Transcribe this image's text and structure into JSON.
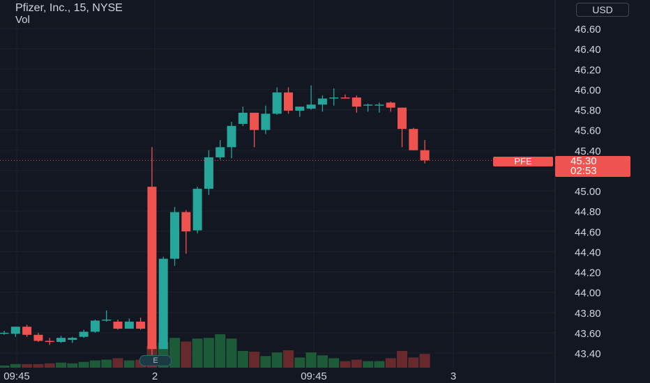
{
  "legend": {
    "title": "Pfizer, Inc., 15, NYSE",
    "vol_label": "Vol"
  },
  "currency": "USD",
  "symbol_label": "PFE",
  "last_price": "45.30",
  "countdown": "02:53",
  "earnings_marker": "E",
  "colors": {
    "up": "#26a69a",
    "down": "#ef5350",
    "bg": "#131722",
    "grid": "#1e222d",
    "text": "#d1d4dc"
  },
  "chart_data": {
    "type": "candlestick",
    "title": "Pfizer, Inc., 15, NYSE",
    "y_axis": {
      "ticks": [
        43.4,
        43.6,
        43.8,
        44.0,
        44.2,
        44.4,
        44.6,
        44.8,
        45.0,
        45.2,
        45.4,
        45.6,
        45.8,
        46.0,
        46.2,
        46.4,
        46.6
      ],
      "range": [
        43.33,
        46.72
      ]
    },
    "x_axis": {
      "tick_labels": [
        "09:45",
        "2",
        "09:45",
        "3"
      ]
    },
    "candles": [
      {
        "o": 43.59,
        "h": 43.62,
        "l": 43.58,
        "c": 43.6
      },
      {
        "o": 43.59,
        "h": 43.66,
        "l": 43.56,
        "c": 43.66
      },
      {
        "o": 43.66,
        "h": 43.68,
        "l": 43.56,
        "c": 43.58
      },
      {
        "o": 43.58,
        "h": 43.6,
        "l": 43.51,
        "c": 43.52
      },
      {
        "o": 43.52,
        "h": 43.55,
        "l": 43.48,
        "c": 43.51
      },
      {
        "o": 43.51,
        "h": 43.57,
        "l": 43.5,
        "c": 43.55
      },
      {
        "o": 43.53,
        "h": 43.56,
        "l": 43.5,
        "c": 43.55
      },
      {
        "o": 43.56,
        "h": 43.63,
        "l": 43.55,
        "c": 43.61
      },
      {
        "o": 43.61,
        "h": 43.73,
        "l": 43.6,
        "c": 43.72
      },
      {
        "o": 43.72,
        "h": 43.82,
        "l": 43.71,
        "c": 43.73
      },
      {
        "o": 43.71,
        "h": 43.73,
        "l": 43.63,
        "c": 43.64
      },
      {
        "o": 43.64,
        "h": 43.74,
        "l": 43.64,
        "c": 43.71
      },
      {
        "o": 43.71,
        "h": 43.75,
        "l": 43.63,
        "c": 43.64
      },
      {
        "o": 45.04,
        "h": 45.43,
        "l": 43.3,
        "c": 43.44
      },
      {
        "o": 43.44,
        "h": 44.35,
        "l": 43.44,
        "c": 44.33
      },
      {
        "o": 44.33,
        "h": 44.84,
        "l": 44.26,
        "c": 44.79
      },
      {
        "o": 44.79,
        "h": 44.81,
        "l": 44.38,
        "c": 44.6
      },
      {
        "o": 44.61,
        "h": 45.04,
        "l": 44.58,
        "c": 45.02
      },
      {
        "o": 45.02,
        "h": 45.4,
        "l": 44.96,
        "c": 45.33
      },
      {
        "o": 45.33,
        "h": 45.5,
        "l": 45.31,
        "c": 45.43
      },
      {
        "o": 45.43,
        "h": 45.68,
        "l": 45.32,
        "c": 45.64
      },
      {
        "o": 45.66,
        "h": 45.83,
        "l": 45.64,
        "c": 45.77
      },
      {
        "o": 45.77,
        "h": 45.77,
        "l": 45.43,
        "c": 45.6
      },
      {
        "o": 45.6,
        "h": 45.84,
        "l": 45.56,
        "c": 45.76
      },
      {
        "o": 45.76,
        "h": 46.02,
        "l": 45.75,
        "c": 45.97
      },
      {
        "o": 45.97,
        "h": 46.02,
        "l": 45.76,
        "c": 45.79
      },
      {
        "o": 45.79,
        "h": 45.83,
        "l": 45.73,
        "c": 45.83
      },
      {
        "o": 45.81,
        "h": 46.04,
        "l": 45.8,
        "c": 45.85
      },
      {
        "o": 45.85,
        "h": 45.94,
        "l": 45.78,
        "c": 45.91
      },
      {
        "o": 45.91,
        "h": 46.01,
        "l": 45.84,
        "c": 45.92
      },
      {
        "o": 45.92,
        "h": 45.95,
        "l": 45.91,
        "c": 45.91
      },
      {
        "o": 45.92,
        "h": 45.94,
        "l": 45.77,
        "c": 45.83
      },
      {
        "o": 45.84,
        "h": 45.86,
        "l": 45.78,
        "c": 45.85
      },
      {
        "o": 45.85,
        "h": 45.87,
        "l": 45.77,
        "c": 45.85
      },
      {
        "o": 45.87,
        "h": 45.88,
        "l": 45.78,
        "c": 45.82
      },
      {
        "o": 45.82,
        "h": 45.82,
        "l": 45.43,
        "c": 45.61
      },
      {
        "o": 45.61,
        "h": 45.62,
        "l": 45.4,
        "c": 45.4
      },
      {
        "o": 45.4,
        "h": 45.5,
        "l": 45.27,
        "c": 45.3
      }
    ],
    "volume": [
      3,
      5,
      5,
      5,
      6,
      7,
      6,
      8,
      10,
      11,
      13,
      10,
      11,
      30,
      35,
      41,
      36,
      40,
      41,
      46,
      40,
      23,
      22,
      16,
      21,
      24,
      14,
      21,
      17,
      13,
      9,
      11,
      9,
      9,
      13,
      23,
      14,
      19
    ]
  }
}
